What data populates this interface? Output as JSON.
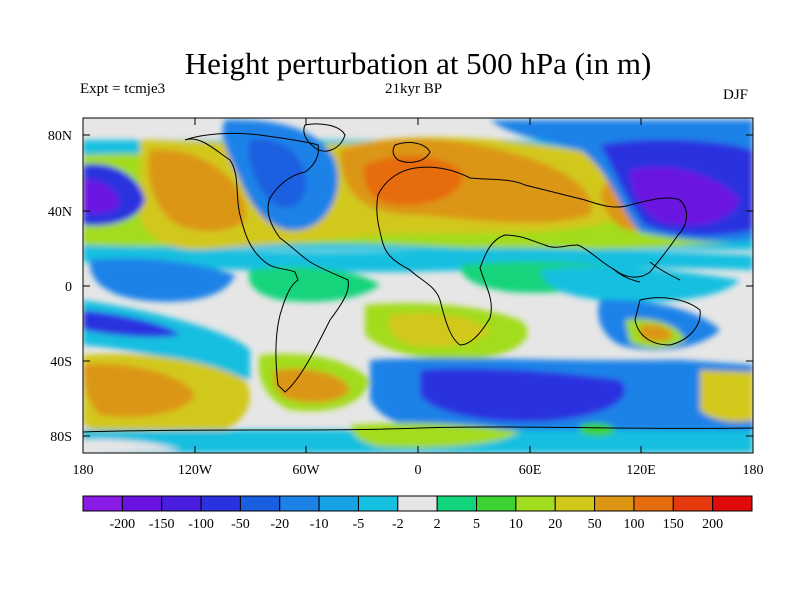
{
  "title": "Height perturbation at 500 hPa (in m)",
  "subtitle_left": "Expt = tcmje3",
  "subtitle_center": "21kyr BP",
  "subtitle_right": "DJF",
  "map": {
    "lat_labels": [
      "80N",
      "40N",
      "0",
      "40S",
      "80S"
    ],
    "lon_labels": [
      "180",
      "120W",
      "60W",
      "0",
      "60E",
      "120E",
      "180"
    ]
  },
  "colorbar": {
    "labels": [
      "-200",
      "-150",
      "-100",
      "-50",
      "-20",
      "-10",
      "-5",
      "-2",
      "2",
      "5",
      "10",
      "20",
      "50",
      "100",
      "150",
      "200"
    ],
    "colors": [
      "#8a1ae6",
      "#6a12e0",
      "#4a1ee0",
      "#2a32e0",
      "#1a5ee0",
      "#1c82e8",
      "#17a2e6",
      "#15bfe0",
      "#e6e6e6",
      "#12d47c",
      "#3cd232",
      "#a2dc1e",
      "#d2c81c",
      "#dc9614",
      "#e66c10",
      "#e63a0e",
      "#e00a0a"
    ]
  }
}
